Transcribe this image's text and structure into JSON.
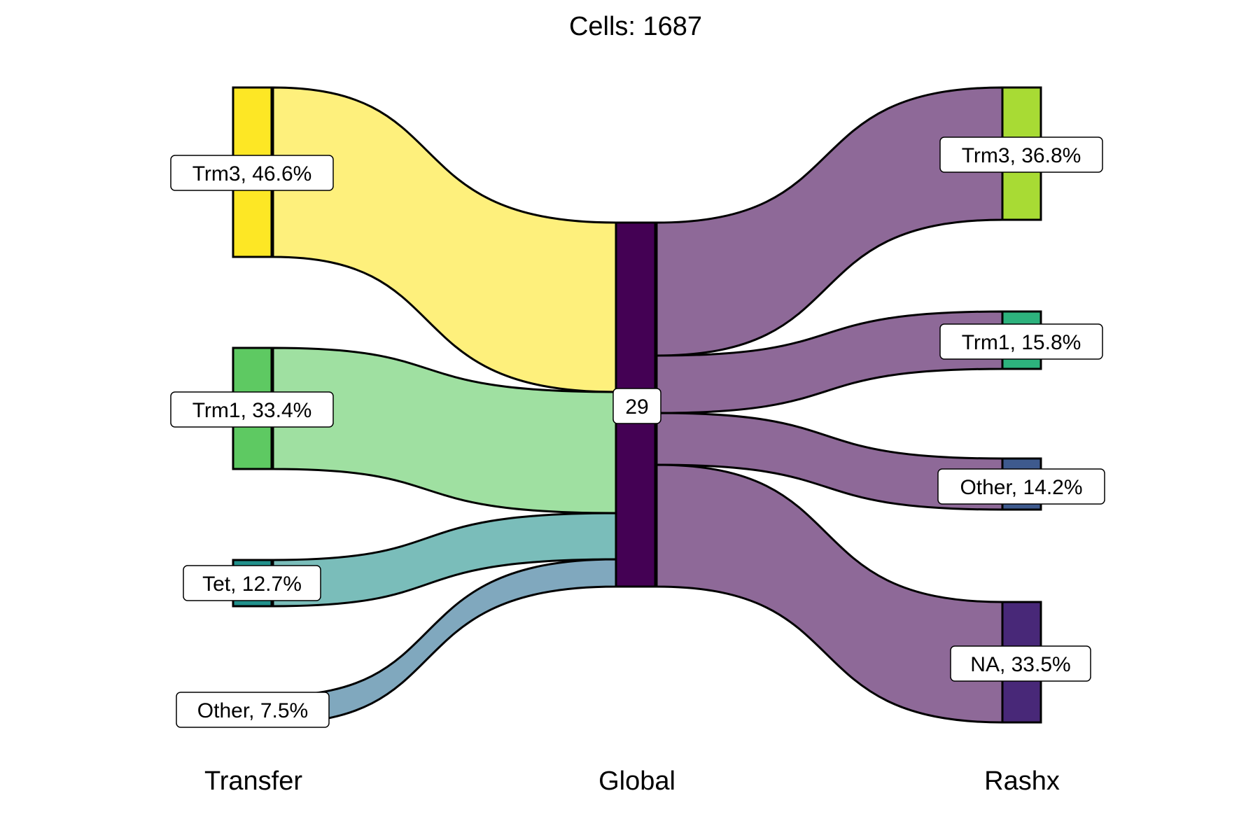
{
  "title": "Cells:  1687",
  "axes": [
    "Transfer",
    "Global",
    "Rashx"
  ],
  "left_nodes": [
    {
      "key": "trm3",
      "label": "Trm3, 46.6%",
      "color": "#FDE725",
      "flow_color": "#FEF07C"
    },
    {
      "key": "trm1",
      "label": "Trm1, 33.4%",
      "color": "#5EC962",
      "flow_color": "#9FE0A1"
    },
    {
      "key": "tet",
      "label": "Tet, 12.7%",
      "color": "#21918C",
      "flow_color": "#7ABDBA"
    },
    {
      "key": "other",
      "label": "Other, 7.5%",
      "color": "#3B6B8C",
      "flow_color": "#80A8BE"
    }
  ],
  "middle_node": {
    "label": "29",
    "color": "#440154"
  },
  "right_nodes": [
    {
      "key": "trm3",
      "label": "Trm3, 36.8%",
      "color": "#A8DB34"
    },
    {
      "key": "trm1",
      "label": "Trm1, 15.8%",
      "color": "#2DB27D"
    },
    {
      "key": "other",
      "label": "Other, 14.2%",
      "color": "#3E5A8E"
    },
    {
      "key": "na",
      "label": "NA, 33.5%",
      "color": "#482878"
    }
  ],
  "right_flow_color": "#8E6998"
}
